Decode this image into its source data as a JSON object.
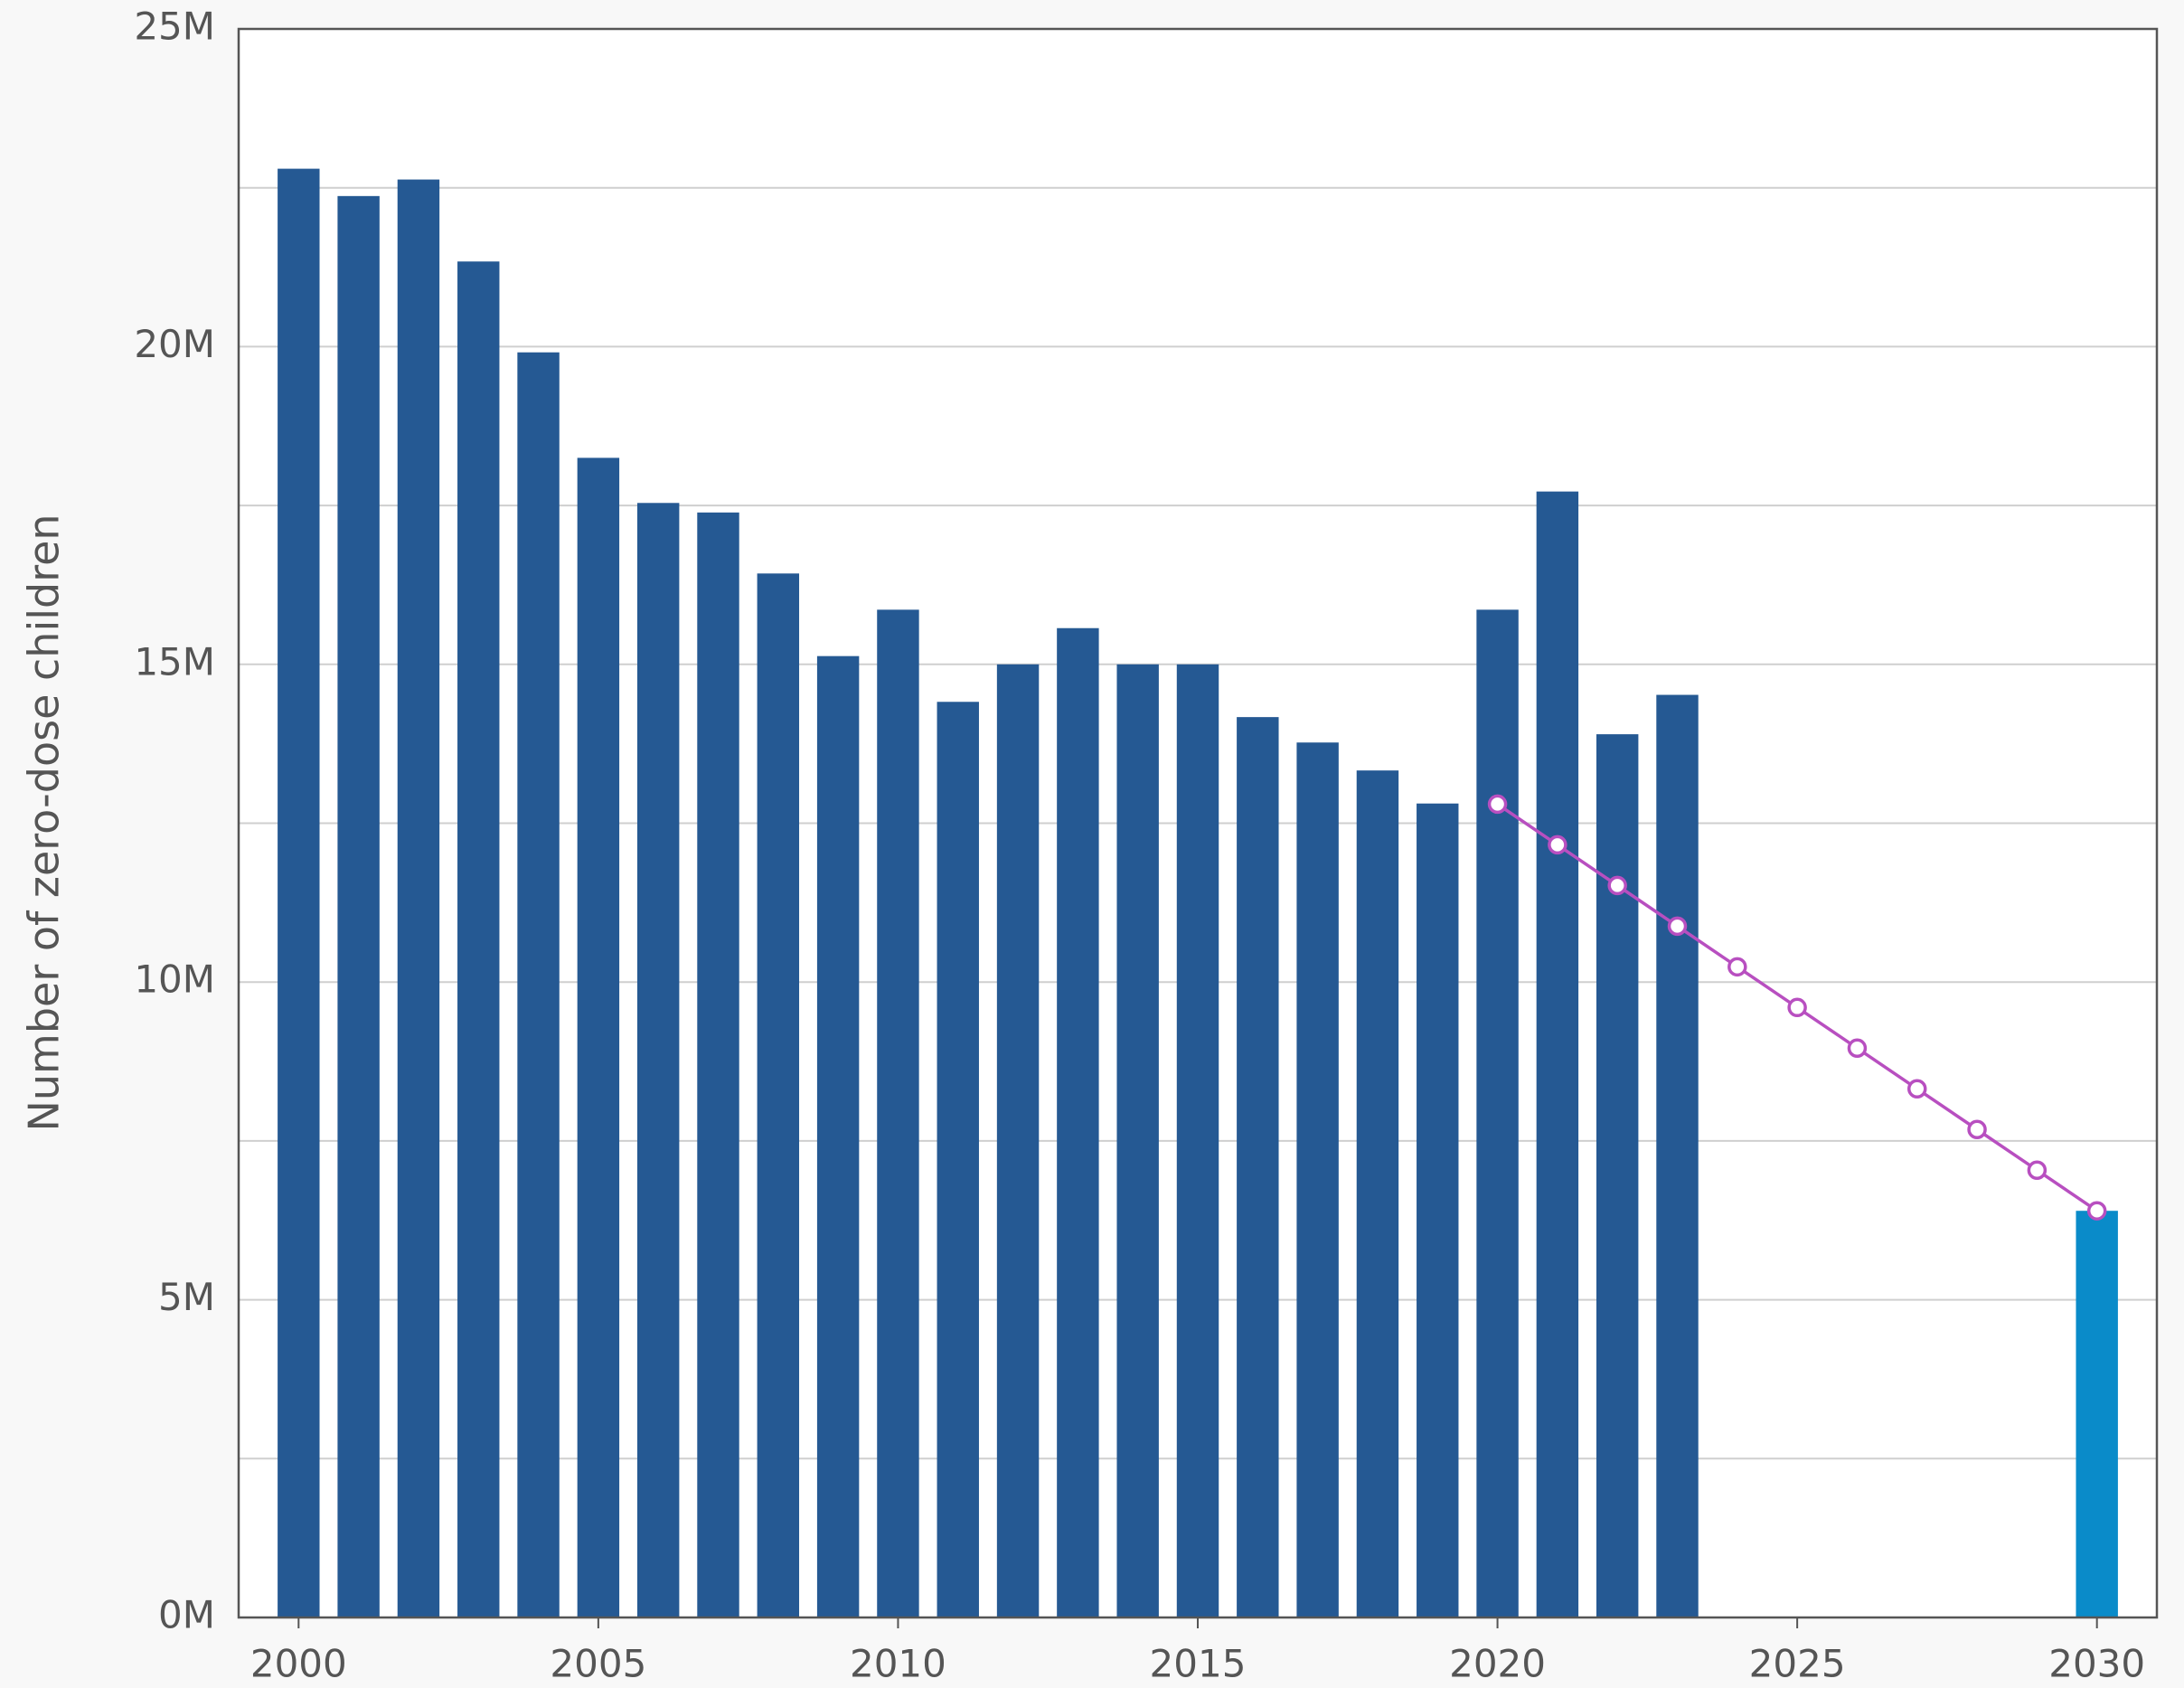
{
  "chart_data": {
    "type": "bar",
    "ylabel": "Number of zero-dose children",
    "series": [
      {
        "type": "bar",
        "color": "#255993",
        "x": [
          2000,
          2001,
          2002,
          2003,
          2004,
          2005,
          2006,
          2007,
          2008,
          2009,
          2010,
          2011,
          2012,
          2013,
          2014,
          2015,
          2016,
          2017,
          2018,
          2019,
          2020,
          2021,
          2022,
          2023
        ],
        "values": [
          22800000,
          22370000,
          22630000,
          21340000,
          19910000,
          18250000,
          17540000,
          17390000,
          16430000,
          15130000,
          15860000,
          14410000,
          15000000,
          15570000,
          15000000,
          15000000,
          14170000,
          13770000,
          13330000,
          12810000,
          15860000,
          17720000,
          13900000,
          14520000
        ]
      },
      {
        "type": "bar",
        "color": "#0a8bc9",
        "x": [
          2030
        ],
        "values": [
          6400000
        ]
      },
      {
        "type": "line",
        "color": "#b84fc0",
        "x": [
          2020,
          2021,
          2022,
          2023,
          2024,
          2025,
          2026,
          2027,
          2028,
          2029,
          2030
        ],
        "values": [
          12800000,
          12160000,
          11520000,
          10880000,
          10240000,
          9600000,
          8960000,
          8320000,
          7680000,
          7040000,
          6400000
        ]
      }
    ],
    "xlim": [
      1999,
      2031
    ],
    "xticks": [
      2000,
      2005,
      2010,
      2015,
      2020,
      2025,
      2030
    ],
    "ylim": [
      0,
      25000000
    ],
    "yticks": [
      {
        "value": 0,
        "label": "0M"
      },
      {
        "value": 5000000,
        "label": "5M"
      },
      {
        "value": 10000000,
        "label": "10M"
      },
      {
        "value": 15000000,
        "label": "15M"
      },
      {
        "value": 20000000,
        "label": "20M"
      },
      {
        "value": 25000000,
        "label": "25M"
      }
    ],
    "minor_yticks": [
      2500000,
      7500000,
      12500000,
      17500000,
      22500000
    ],
    "grid": true
  }
}
